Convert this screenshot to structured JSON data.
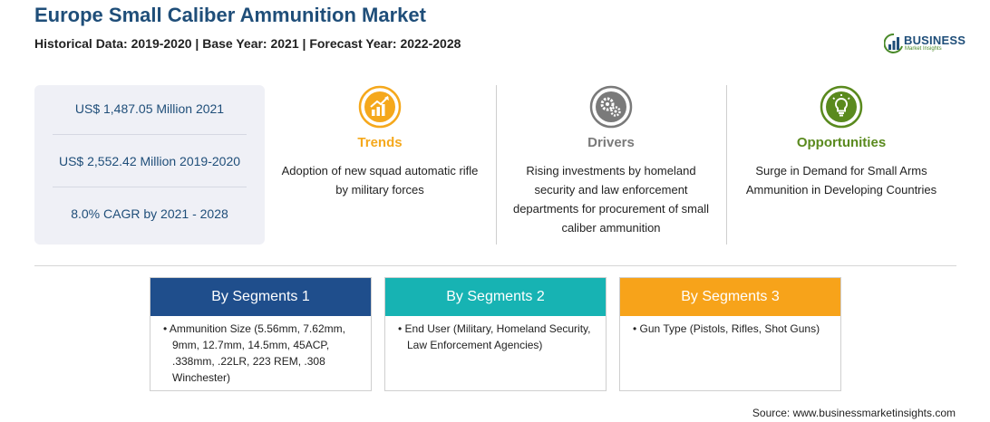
{
  "header": {
    "title": "Europe Small Caliber Ammunition Market",
    "subtitle": "Historical Data: 2019-2020 | Base Year: 2021 | Forecast Year: 2022-2028"
  },
  "logo": {
    "name": "BUSINESS",
    "tagline": "Market Insights",
    "icon": "bar-chart-logo-icon"
  },
  "stats": [
    "US$ 1,487.05 Million 2021",
    "US$ 2,552.42 Million 2019-2020",
    "8.0% CAGR by 2021 - 2028"
  ],
  "columns": [
    {
      "heading": "Trends",
      "text": "Adoption of new squad automatic rifle by military forces",
      "icon": "trending-chart-icon",
      "color": "#f5a81c"
    },
    {
      "heading": "Drivers",
      "text": "Rising investments by homeland security and law enforcement departments for procurement of small caliber ammunition",
      "icon": "gears-icon",
      "color": "#7a7a7a"
    },
    {
      "heading": "Opportunities",
      "text": "Surge in Demand for Small Arms Ammunition in Developing Countries",
      "icon": "lightbulb-icon",
      "color": "#5a8a1e"
    }
  ],
  "segments": [
    {
      "heading": "By Segments 1",
      "bullet": "Ammunition Size (5.56mm, 7.62mm, 9mm, 12.7mm, 14.5mm, 45ACP, .338mm, .22LR, 223 REM, .308 Winchester)",
      "color": "#1f4e8c"
    },
    {
      "heading": "By Segments 2",
      "bullet": "End User (Military, Homeland Security, Law Enforcement Agencies)",
      "color": "#17b3b3"
    },
    {
      "heading": "By Segments 3",
      "bullet": "Gun Type (Pistols, Rifles, Shot Guns)",
      "color": "#f7a31a"
    }
  ],
  "footer": {
    "source": "Source: www.businessmarketinsights.com"
  }
}
